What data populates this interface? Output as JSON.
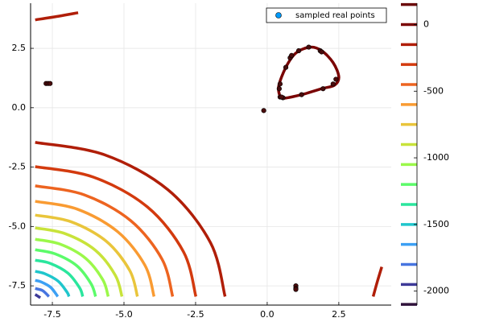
{
  "chart_data": {
    "type": "contour",
    "xlim": [
      -8.26,
      4.33
    ],
    "ylim": [
      -8.31,
      4.4
    ],
    "xticks": [
      -7.5,
      {
        "value": -5,
        "label": "-5.0"
      },
      -2.5,
      {
        "value": 0,
        "label": "0.0"
      },
      2.5
    ],
    "yticks": [
      2.5,
      {
        "value": 0,
        "label": "0.0"
      },
      -2.5,
      {
        "value": -5,
        "label": "-5.0"
      },
      -7.5
    ],
    "grid": true,
    "clim": [
      -2105,
      160
    ],
    "cticks": [
      0,
      -500,
      -1000,
      -1500,
      -2000
    ],
    "legend": "top right",
    "levels": [
      {
        "value": 150,
        "color": "#6b0a0a"
      },
      {
        "value": 0,
        "color": "#7a0403",
        "lines": [
          {
            "x": [
              0.45,
              0.4,
              0.65,
              1.0,
              1.5,
              1.9,
              2.3,
              2.5,
              2.35,
              1.9,
              1.2,
              0.6,
              0.45
            ],
            "y": [
              0.45,
              0.9,
              1.7,
              2.3,
              2.55,
              2.4,
              1.9,
              1.3,
              0.95,
              0.8,
              0.55,
              0.4,
              0.45
            ]
          }
        ]
      },
      {
        "value": -150,
        "color": "#b01e08",
        "lines": [
          {
            "x": [
              -8.1,
              -5.68,
              -3.46,
              -1.98,
              -1.47
            ],
            "y": [
              -1.46,
              -1.98,
              -3.46,
              -5.68,
              -7.95
            ]
          },
          {
            "x": [
              -8.1,
              -7.3,
              -6.6
            ],
            "y": [
              3.7,
              3.85,
              4.0
            ]
          },
          {
            "x": [
              3.7,
              3.85,
              4.0
            ],
            "y": [
              -7.95,
              -7.3,
              -6.7
            ]
          }
        ]
      },
      {
        "value": -300,
        "color": "#d33a0e",
        "lines": [
          {
            "x": [
              -8.1,
              -6.07,
              -4.18,
              -2.92,
              -2.49
            ],
            "y": [
              -2.48,
              -2.92,
              -4.18,
              -6.07,
              -7.95
            ]
          }
        ]
      },
      {
        "value": -450,
        "color": "#ed6420",
        "lines": [
          {
            "x": [
              -8.1,
              -6.38,
              -4.76,
              -3.67,
              -3.3
            ],
            "y": [
              -3.29,
              -3.67,
              -4.76,
              -6.38,
              -7.95
            ]
          }
        ]
      },
      {
        "value": -600,
        "color": "#f99b32",
        "lines": [
          {
            "x": [
              -8.1,
              -6.63,
              -5.22,
              -4.27,
              -3.95
            ],
            "y": [
              -3.94,
              -4.27,
              -5.22,
              -6.63,
              -7.95
            ]
          }
        ]
      },
      {
        "value": -750,
        "color": "#e9c53b",
        "lines": [
          {
            "x": [
              -8.1,
              -6.85,
              -5.62,
              -4.8,
              -4.53
            ],
            "y": [
              -4.52,
              -4.8,
              -5.62,
              -6.85,
              -7.95
            ]
          }
        ]
      },
      {
        "value": -900,
        "color": "#c8e33a",
        "lines": [
          {
            "x": [
              -8.1,
              -7.06,
              -6.0,
              -5.3,
              -5.07
            ],
            "y": [
              -5.06,
              -5.3,
              -6.0,
              -7.06,
              -7.95
            ]
          }
        ]
      },
      {
        "value": -1050,
        "color": "#9bf84a",
        "lines": [
          {
            "x": [
              -8.1,
              -7.24,
              -6.34,
              -5.74,
              -5.55
            ],
            "y": [
              -5.54,
              -5.74,
              -6.34,
              -7.24,
              -7.95
            ]
          }
        ]
      },
      {
        "value": -1200,
        "color": "#5cfb6a",
        "lines": [
          {
            "x": [
              -8.1,
              -7.41,
              -6.65,
              -6.15,
              -5.99
            ],
            "y": [
              -5.98,
              -6.15,
              -6.65,
              -7.41,
              -7.95
            ]
          }
        ]
      },
      {
        "value": -1350,
        "color": "#2ae69d",
        "lines": [
          {
            "x": [
              -8.1,
              -7.58,
              -6.96,
              -6.55,
              -6.44
            ],
            "y": [
              -6.42,
              -6.55,
              -6.96,
              -7.58,
              -7.95
            ]
          }
        ]
      },
      {
        "value": -1500,
        "color": "#1fc6cc",
        "lines": [
          {
            "x": [
              -8.1,
              -7.76,
              -7.3,
              -6.99,
              -6.92
            ],
            "y": [
              -6.89,
              -6.99,
              -7.3,
              -7.76,
              -7.95
            ]
          }
        ]
      },
      {
        "value": -1650,
        "color": "#3ca0f4",
        "lines": [
          {
            "x": [
              -8.1,
              -7.9,
              -7.56,
              -7.31
            ],
            "y": [
              -7.27,
              -7.33,
              -7.56,
              -7.95
            ]
          }
        ]
      },
      {
        "value": -1800,
        "color": "#4775e0",
        "lines": [
          {
            "x": [
              -8.1,
              -7.84,
              -7.62
            ],
            "y": [
              -7.61,
              -7.7,
              -7.95
            ]
          }
        ]
      },
      {
        "value": -1950,
        "color": "#3e3a98",
        "lines": [
          {
            "x": [
              -8.1,
              -7.92
            ],
            "y": [
              -7.86,
              -8.0
            ]
          }
        ]
      },
      {
        "value": -2100,
        "color": "#30123b"
      }
    ],
    "series": [
      {
        "name": "sampled real points",
        "color": "#009afa",
        "marker_color": "#4a0c0c",
        "x": [
          -7.72,
          -7.65,
          -7.58,
          -0.12,
          1.0,
          1.0,
          1.0,
          0.45,
          0.55,
          0.42,
          0.45,
          0.65,
          0.8,
          0.85,
          1.1,
          1.45,
          1.85,
          1.9,
          2.3,
          2.4,
          1.95,
          1.2,
          0.5
        ],
        "y": [
          1.02,
          1.02,
          1.02,
          -0.12,
          -7.5,
          -7.6,
          -7.65,
          0.45,
          0.42,
          0.8,
          1.0,
          1.7,
          2.1,
          2.2,
          2.4,
          2.55,
          2.4,
          2.35,
          1.0,
          1.2,
          0.8,
          0.55,
          0.45
        ]
      }
    ]
  }
}
